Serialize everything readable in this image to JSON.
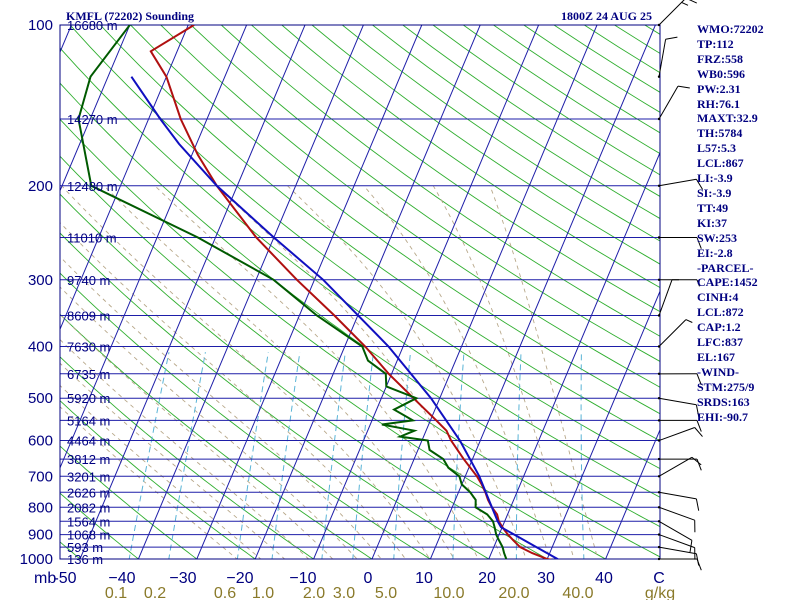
{
  "header": {
    "station": "KMFL (72202) Sounding",
    "time": "1800Z 24 AUG 25"
  },
  "indices": [
    "WMO:72202",
    "TP:112",
    "FRZ:558",
    "WB0:596",
    "PW:2.31",
    "RH:76.1",
    "MAXT:32.9",
    "TH:5784",
    "L57:5.3",
    "LCL:867",
    "LI:-3.9",
    "SI:-3.9",
    "TT:49",
    "KI:37",
    "SW:253",
    "EI:-2.8",
    "-PARCEL-",
    "CAPE:1452",
    "CINH:4",
    "LCL:872",
    "CAP:1.2",
    "LFC:837",
    "EL:167",
    "-WIND-",
    "STM:275/9",
    "SRDS:163",
    "EHI:-90.7"
  ],
  "colors": {
    "frame": "#000080",
    "isobar": "#1e1ea8",
    "isotherm": "#1e1ea8",
    "dry_adiabat": "#2fae2f",
    "moist_adiabat": "#b8a88a",
    "mixing_ratio": "#5ab4d6",
    "temperature": "#b01010",
    "dewpoint": "#005a00",
    "parcel": "#1010c0",
    "wind": "#000000"
  },
  "chart_data": {
    "type": "skew-t log-p sounding",
    "pressure_axis": {
      "unit": "mb",
      "levels": [
        100,
        200,
        300,
        400,
        500,
        600,
        700,
        800,
        900,
        1000
      ],
      "range": [
        100,
        1000
      ],
      "scale": "log"
    },
    "temperature_axis": {
      "unit": "C",
      "ticks": [
        -50,
        -40,
        -30,
        -20,
        -10,
        0,
        10,
        20,
        30,
        40
      ],
      "tick_labels": [
        "-50",
        "−40",
        "−30",
        "−20",
        "−10",
        "0",
        "10",
        "20",
        "30",
        "40"
      ],
      "unit_label": "C"
    },
    "mixing_ratio_axis": {
      "unit": "g/kg",
      "ticks": [
        0.1,
        0.2,
        0.6,
        1.0,
        2.0,
        3.0,
        5.0,
        10.0,
        20.0,
        40.0
      ],
      "tick_labels": [
        "0.1",
        "0.2",
        "0.6",
        "1.0",
        "2.0",
        "3.0",
        "5.0",
        "10.0",
        "20.0",
        "40.0"
      ],
      "unit_label": "g/kg"
    },
    "height_labels": [
      {
        "p": 100,
        "label": "16680 m"
      },
      {
        "p": 150,
        "label": "14270 m"
      },
      {
        "p": 200,
        "label": "12480 m"
      },
      {
        "p": 250,
        "label": "11010 m"
      },
      {
        "p": 300,
        "label": "9740 m"
      },
      {
        "p": 350,
        "label": "8609 m"
      },
      {
        "p": 400,
        "label": "7630 m"
      },
      {
        "p": 450,
        "label": "6735 m"
      },
      {
        "p": 500,
        "label": "5920 m"
      },
      {
        "p": 550,
        "label": "5164 m"
      },
      {
        "p": 600,
        "label": "4464 m"
      },
      {
        "p": 650,
        "label": "3812 m"
      },
      {
        "p": 700,
        "label": "3201 m"
      },
      {
        "p": 750,
        "label": "2626 m"
      },
      {
        "p": 800,
        "label": "2082 m"
      },
      {
        "p": 850,
        "label": "1564 m"
      },
      {
        "p": 900,
        "label": "1068 m"
      },
      {
        "p": 950,
        "label": "593 m"
      },
      {
        "p": 1000,
        "label": "136 m"
      }
    ],
    "series": [
      {
        "name": "temperature",
        "points": [
          [
            1013,
            32.9
          ],
          [
            1000,
            30
          ],
          [
            975,
            27
          ],
          [
            950,
            24.5
          ],
          [
            925,
            23
          ],
          [
            900,
            21.5
          ],
          [
            875,
            20.2
          ],
          [
            850,
            19
          ],
          [
            825,
            18.2
          ],
          [
            800,
            16.8
          ],
          [
            775,
            15.6
          ],
          [
            750,
            14.6
          ],
          [
            725,
            13.4
          ],
          [
            700,
            12
          ],
          [
            650,
            8.5
          ],
          [
            600,
            5
          ],
          [
            575,
            3.5
          ],
          [
            550,
            1
          ],
          [
            500,
            -4.5
          ],
          [
            450,
            -10.5
          ],
          [
            400,
            -16.5
          ],
          [
            350,
            -24
          ],
          [
            300,
            -33
          ],
          [
            250,
            -43
          ],
          [
            200,
            -53.5
          ],
          [
            175,
            -59
          ],
          [
            150,
            -64.5
          ],
          [
            125,
            -70
          ],
          [
            112,
            -74.5
          ],
          [
            100,
            -69
          ]
        ]
      },
      {
        "name": "dewpoint",
        "points": [
          [
            1013,
            23.5
          ],
          [
            1000,
            23
          ],
          [
            975,
            22.2
          ],
          [
            950,
            21.5
          ],
          [
            925,
            20.5
          ],
          [
            900,
            19.5
          ],
          [
            875,
            18.8
          ],
          [
            850,
            18
          ],
          [
            825,
            16.5
          ],
          [
            800,
            14
          ],
          [
            775,
            13.5
          ],
          [
            750,
            12
          ],
          [
            725,
            10
          ],
          [
            700,
            9
          ],
          [
            675,
            6.5
          ],
          [
            650,
            5
          ],
          [
            625,
            2
          ],
          [
            600,
            1
          ],
          [
            590,
            -4
          ],
          [
            575,
            -2
          ],
          [
            560,
            -8
          ],
          [
            550,
            -3
          ],
          [
            525,
            -7
          ],
          [
            500,
            -4
          ],
          [
            475,
            -10
          ],
          [
            450,
            -11
          ],
          [
            425,
            -15
          ],
          [
            400,
            -17
          ],
          [
            350,
            -27
          ],
          [
            300,
            -37
          ],
          [
            250,
            -53
          ],
          [
            200,
            -75
          ],
          [
            150,
            -82
          ],
          [
            125,
            -83
          ],
          [
            100,
            -80
          ]
        ]
      },
      {
        "name": "parcel",
        "points": [
          [
            1013,
            32.9
          ],
          [
            950,
            27.3
          ],
          [
            900,
            22.6
          ],
          [
            872,
            19.8
          ],
          [
            850,
            18.8
          ],
          [
            800,
            16.8
          ],
          [
            700,
            12.4
          ],
          [
            600,
            6.5
          ],
          [
            500,
            -1.5
          ],
          [
            400,
            -12.5
          ],
          [
            300,
            -28.5
          ],
          [
            250,
            -40
          ],
          [
            200,
            -53.5
          ],
          [
            167,
            -63
          ],
          [
            150,
            -68
          ],
          [
            125,
            -76
          ]
        ]
      }
    ],
    "wind": {
      "unit": "kt",
      "barbs": [
        {
          "p": 1000,
          "dir": 90,
          "spd": 10
        },
        {
          "p": 950,
          "dir": 100,
          "spd": 10
        },
        {
          "p": 900,
          "dir": 110,
          "spd": 10
        },
        {
          "p": 850,
          "dir": 120,
          "spd": 10
        },
        {
          "p": 800,
          "dir": 110,
          "spd": 10
        },
        {
          "p": 750,
          "dir": 100,
          "spd": 10
        },
        {
          "p": 700,
          "dir": 60,
          "spd": 10
        },
        {
          "p": 650,
          "dir": 90,
          "spd": 10
        },
        {
          "p": 600,
          "dir": 70,
          "spd": 10
        },
        {
          "p": 550,
          "dir": 90,
          "spd": 10
        },
        {
          "p": 500,
          "dir": 100,
          "spd": 10
        },
        {
          "p": 450,
          "dir": 90,
          "spd": 10
        },
        {
          "p": 400,
          "dir": 45,
          "spd": 5
        },
        {
          "p": 350,
          "dir": 20,
          "spd": 5
        },
        {
          "p": 300,
          "dir": 90,
          "spd": 5
        },
        {
          "p": 250,
          "dir": 90,
          "spd": 10
        },
        {
          "p": 200,
          "dir": 80,
          "spd": 10
        },
        {
          "p": 150,
          "dir": 30,
          "spd": 10
        },
        {
          "p": 125,
          "dir": 10,
          "spd": 10
        },
        {
          "p": 100,
          "dir": 45,
          "spd": 15
        }
      ]
    }
  }
}
